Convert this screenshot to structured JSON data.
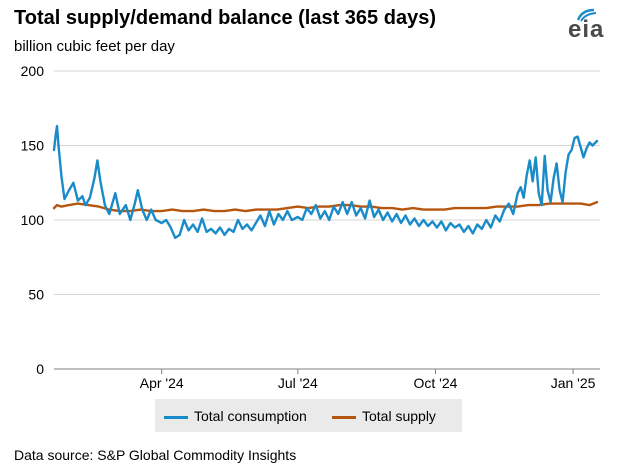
{
  "header": {
    "title": "Total supply/demand balance (last 365 days)",
    "subtitle": "billion cubic feet per day",
    "logo_text": "eia"
  },
  "source": "Data source: S&P Global Commodity Insights",
  "colors": {
    "consumption": "#1a8bc9",
    "supply": "#b5560e",
    "grid": "#d6d6d6",
    "axis": "#7f7f7f",
    "legend_bg": "#eaeaea"
  },
  "chart_data": {
    "type": "line",
    "x_axis": {
      "type": "date",
      "range": [
        "2024-01-20",
        "2025-01-19"
      ],
      "ticks": [
        {
          "date": "2024-04-01",
          "label": "Apr '24"
        },
        {
          "date": "2024-07-01",
          "label": "Jul '24"
        },
        {
          "date": "2024-10-01",
          "label": "Oct '24"
        },
        {
          "date": "2025-01-01",
          "label": "Jan '25"
        }
      ]
    },
    "y_axis": {
      "range": [
        0,
        200
      ],
      "ticks": [
        0,
        50,
        100,
        150,
        200
      ]
    },
    "grid": true,
    "legend_placement": "bottom",
    "series": [
      {
        "name": "Total consumption",
        "points": [
          [
            "2024-01-20",
            147
          ],
          [
            "2024-01-21",
            156
          ],
          [
            "2024-01-22",
            163
          ],
          [
            "2024-01-23",
            150
          ],
          [
            "2024-01-25",
            129
          ],
          [
            "2024-01-27",
            114
          ],
          [
            "2024-01-30",
            120
          ],
          [
            "2024-02-02",
            125
          ],
          [
            "2024-02-05",
            113
          ],
          [
            "2024-02-08",
            116
          ],
          [
            "2024-02-10",
            110
          ],
          [
            "2024-02-13",
            115
          ],
          [
            "2024-02-16",
            128
          ],
          [
            "2024-02-18",
            140
          ],
          [
            "2024-02-20",
            126
          ],
          [
            "2024-02-23",
            110
          ],
          [
            "2024-02-26",
            104
          ],
          [
            "2024-03-01",
            118
          ],
          [
            "2024-03-04",
            104
          ],
          [
            "2024-03-08",
            110
          ],
          [
            "2024-03-11",
            100
          ],
          [
            "2024-03-14",
            111
          ],
          [
            "2024-03-16",
            120
          ],
          [
            "2024-03-19",
            107
          ],
          [
            "2024-03-22",
            100
          ],
          [
            "2024-03-25",
            107
          ],
          [
            "2024-03-28",
            100
          ],
          [
            "2024-04-01",
            98
          ],
          [
            "2024-04-04",
            100
          ],
          [
            "2024-04-07",
            95
          ],
          [
            "2024-04-10",
            88
          ],
          [
            "2024-04-13",
            90
          ],
          [
            "2024-04-16",
            100
          ],
          [
            "2024-04-19",
            93
          ],
          [
            "2024-04-22",
            97
          ],
          [
            "2024-04-25",
            92
          ],
          [
            "2024-04-28",
            101
          ],
          [
            "2024-05-01",
            92
          ],
          [
            "2024-05-04",
            94
          ],
          [
            "2024-05-07",
            91
          ],
          [
            "2024-05-10",
            95
          ],
          [
            "2024-05-13",
            90
          ],
          [
            "2024-05-16",
            94
          ],
          [
            "2024-05-19",
            92
          ],
          [
            "2024-05-22",
            100
          ],
          [
            "2024-05-25",
            94
          ],
          [
            "2024-05-28",
            97
          ],
          [
            "2024-05-31",
            93
          ],
          [
            "2024-06-03",
            98
          ],
          [
            "2024-06-06",
            103
          ],
          [
            "2024-06-09",
            96
          ],
          [
            "2024-06-12",
            106
          ],
          [
            "2024-06-15",
            97
          ],
          [
            "2024-06-18",
            104
          ],
          [
            "2024-06-21",
            100
          ],
          [
            "2024-06-24",
            106
          ],
          [
            "2024-06-27",
            100
          ],
          [
            "2024-07-01",
            102
          ],
          [
            "2024-07-04",
            100
          ],
          [
            "2024-07-07",
            108
          ],
          [
            "2024-07-10",
            104
          ],
          [
            "2024-07-13",
            110
          ],
          [
            "2024-07-16",
            101
          ],
          [
            "2024-07-19",
            106
          ],
          [
            "2024-07-22",
            100
          ],
          [
            "2024-07-25",
            109
          ],
          [
            "2024-07-28",
            104
          ],
          [
            "2024-07-31",
            112
          ],
          [
            "2024-08-03",
            104
          ],
          [
            "2024-08-06",
            112
          ],
          [
            "2024-08-09",
            103
          ],
          [
            "2024-08-12",
            108
          ],
          [
            "2024-08-15",
            101
          ],
          [
            "2024-08-18",
            113
          ],
          [
            "2024-08-21",
            102
          ],
          [
            "2024-08-24",
            107
          ],
          [
            "2024-08-27",
            100
          ],
          [
            "2024-08-30",
            105
          ],
          [
            "2024-09-02",
            99
          ],
          [
            "2024-09-05",
            104
          ],
          [
            "2024-09-08",
            98
          ],
          [
            "2024-09-11",
            103
          ],
          [
            "2024-09-14",
            97
          ],
          [
            "2024-09-17",
            101
          ],
          [
            "2024-09-20",
            96
          ],
          [
            "2024-09-23",
            100
          ],
          [
            "2024-09-26",
            96
          ],
          [
            "2024-09-29",
            99
          ],
          [
            "2024-10-02",
            95
          ],
          [
            "2024-10-05",
            99
          ],
          [
            "2024-10-08",
            93
          ],
          [
            "2024-10-11",
            98
          ],
          [
            "2024-10-14",
            95
          ],
          [
            "2024-10-17",
            97
          ],
          [
            "2024-10-20",
            92
          ],
          [
            "2024-10-23",
            96
          ],
          [
            "2024-10-26",
            91
          ],
          [
            "2024-10-29",
            97
          ],
          [
            "2024-11-01",
            94
          ],
          [
            "2024-11-04",
            100
          ],
          [
            "2024-11-07",
            95
          ],
          [
            "2024-11-10",
            103
          ],
          [
            "2024-11-13",
            99
          ],
          [
            "2024-11-16",
            107
          ],
          [
            "2024-11-19",
            111
          ],
          [
            "2024-11-22",
            104
          ],
          [
            "2024-11-25",
            118
          ],
          [
            "2024-11-27",
            122
          ],
          [
            "2024-11-29",
            115
          ],
          [
            "2024-12-01",
            130
          ],
          [
            "2024-12-03",
            140
          ],
          [
            "2024-12-05",
            126
          ],
          [
            "2024-12-07",
            142
          ],
          [
            "2024-12-09",
            118
          ],
          [
            "2024-12-11",
            110
          ],
          [
            "2024-12-13",
            143
          ],
          [
            "2024-12-15",
            120
          ],
          [
            "2024-12-17",
            112
          ],
          [
            "2024-12-19",
            128
          ],
          [
            "2024-12-21",
            138
          ],
          [
            "2024-12-23",
            120
          ],
          [
            "2024-12-25",
            112
          ],
          [
            "2024-12-27",
            132
          ],
          [
            "2024-12-29",
            144
          ],
          [
            "2024-12-31",
            147
          ],
          [
            "2025-01-02",
            155
          ],
          [
            "2025-01-04",
            156
          ],
          [
            "2025-01-06",
            149
          ],
          [
            "2025-01-08",
            142
          ],
          [
            "2025-01-10",
            148
          ],
          [
            "2025-01-12",
            152
          ],
          [
            "2025-01-14",
            150
          ],
          [
            "2025-01-17",
            153
          ]
        ]
      },
      {
        "name": "Total supply",
        "points": [
          [
            "2024-01-20",
            108
          ],
          [
            "2024-01-22",
            110
          ],
          [
            "2024-01-25",
            109
          ],
          [
            "2024-01-30",
            110
          ],
          [
            "2024-02-05",
            111
          ],
          [
            "2024-02-12",
            110
          ],
          [
            "2024-02-19",
            109
          ],
          [
            "2024-02-26",
            107
          ],
          [
            "2024-03-04",
            106
          ],
          [
            "2024-03-11",
            106
          ],
          [
            "2024-03-18",
            107
          ],
          [
            "2024-03-25",
            106
          ],
          [
            "2024-04-01",
            106
          ],
          [
            "2024-04-08",
            107
          ],
          [
            "2024-04-15",
            106
          ],
          [
            "2024-04-22",
            106
          ],
          [
            "2024-04-29",
            107
          ],
          [
            "2024-05-06",
            106
          ],
          [
            "2024-05-13",
            106
          ],
          [
            "2024-05-20",
            107
          ],
          [
            "2024-05-27",
            106
          ],
          [
            "2024-06-03",
            107
          ],
          [
            "2024-06-10",
            107
          ],
          [
            "2024-06-17",
            107
          ],
          [
            "2024-06-24",
            108
          ],
          [
            "2024-07-01",
            109
          ],
          [
            "2024-07-08",
            108
          ],
          [
            "2024-07-15",
            109
          ],
          [
            "2024-07-22",
            109
          ],
          [
            "2024-07-29",
            110
          ],
          [
            "2024-08-05",
            110
          ],
          [
            "2024-08-12",
            109
          ],
          [
            "2024-08-19",
            109
          ],
          [
            "2024-08-26",
            108
          ],
          [
            "2024-09-02",
            108
          ],
          [
            "2024-09-09",
            107
          ],
          [
            "2024-09-16",
            108
          ],
          [
            "2024-09-23",
            107
          ],
          [
            "2024-09-30",
            107
          ],
          [
            "2024-10-07",
            107
          ],
          [
            "2024-10-14",
            108
          ],
          [
            "2024-10-21",
            108
          ],
          [
            "2024-10-28",
            108
          ],
          [
            "2024-11-04",
            108
          ],
          [
            "2024-11-11",
            109
          ],
          [
            "2024-11-18",
            109
          ],
          [
            "2024-11-25",
            109
          ],
          [
            "2024-12-02",
            110
          ],
          [
            "2024-12-09",
            110
          ],
          [
            "2024-12-16",
            111
          ],
          [
            "2024-12-23",
            111
          ],
          [
            "2024-12-30",
            111
          ],
          [
            "2025-01-06",
            111
          ],
          [
            "2025-01-12",
            110
          ],
          [
            "2025-01-17",
            112
          ]
        ]
      }
    ]
  }
}
